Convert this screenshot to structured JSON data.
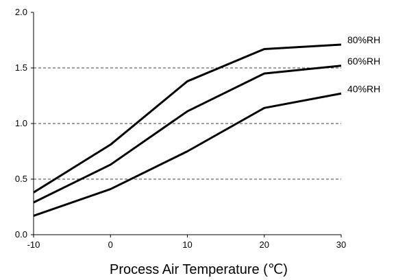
{
  "chart_data": {
    "type": "line",
    "title": "",
    "xlabel": "Process Air Temperature (℃)",
    "ylabel": "",
    "x": [
      -10,
      0,
      10,
      20,
      30
    ],
    "xlim": [
      -10,
      30
    ],
    "ylim": [
      0,
      2.0
    ],
    "xticks": [
      "-10",
      "0",
      "10",
      "20",
      "30"
    ],
    "yticks": [
      "0.0",
      "0.5",
      "1.0",
      "1.5",
      "2.0"
    ],
    "grid": "horizontal dashed at 0.5, 1.0, 1.5",
    "legend": "labels at right end of lines",
    "series": [
      {
        "name": "80%RH",
        "values": [
          0.38,
          0.81,
          1.38,
          1.67,
          1.71
        ]
      },
      {
        "name": "60%RH",
        "values": [
          0.29,
          0.63,
          1.11,
          1.45,
          1.52
        ]
      },
      {
        "name": "40%RH",
        "values": [
          0.17,
          0.41,
          0.75,
          1.14,
          1.27
        ]
      }
    ],
    "colors": {
      "line": "#000000",
      "grid": "#000000"
    }
  }
}
